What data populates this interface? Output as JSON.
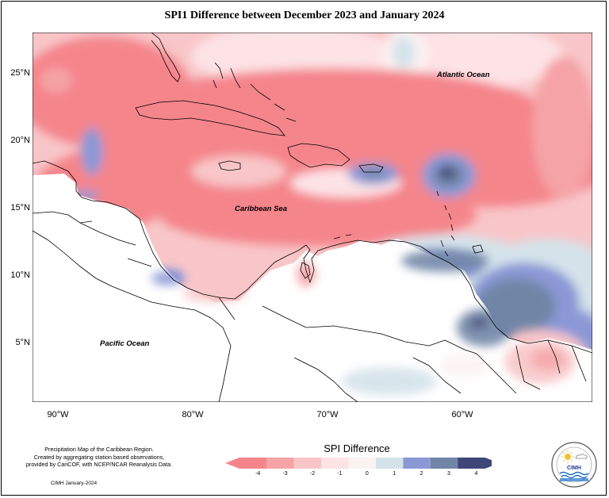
{
  "title": "SPI1 Difference between December 2023 and January 2024",
  "lat_labels": [
    "25°N",
    "20°N",
    "15°N",
    "10°N",
    "5°N"
  ],
  "lon_labels": [
    "90°W",
    "80°W",
    "70°W",
    "60°W"
  ],
  "oceans": {
    "atlantic": "Atlantic Ocean",
    "caribbean": "Caribbean Sea",
    "pacific": "Pacific Ocean"
  },
  "credit": {
    "line1": "Precipitation Map of the Caribbean Region.",
    "line2": "Created by aggregating station based observations,",
    "line3": "provided by CariCOF, with NCEP/NCAR Reanalysis Data.",
    "stamp": "CIMH January-2024"
  },
  "legend": {
    "title": "SPI Difference",
    "ticks": [
      "-4",
      "-3",
      "-2",
      "-1",
      "0",
      "1",
      "2",
      "3",
      "4"
    ],
    "colors": [
      "#f4858b",
      "#f5a3a6",
      "#f8c6c8",
      "#fde3e6",
      "#fbf2f2",
      "#d4e3ea",
      "#8b98d6",
      "#7186a7",
      "#3f4779"
    ]
  },
  "logo": {
    "text": "CIMH"
  }
}
